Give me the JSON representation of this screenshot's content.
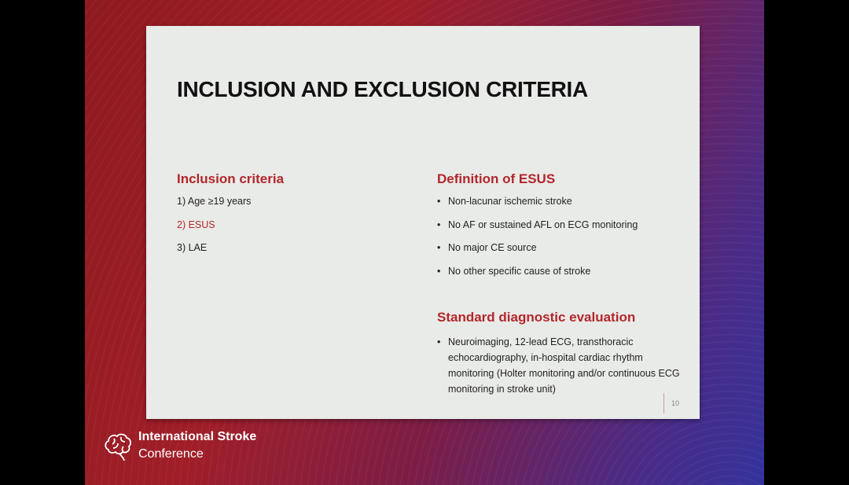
{
  "slide": {
    "title": "INCLUSION AND EXCLUSION CRITERIA",
    "inclusion": {
      "heading": "Inclusion criteria",
      "items": [
        "1) Age ≥19 years",
        "2) ESUS",
        "3) LAE"
      ]
    },
    "esus": {
      "heading": "Definition of ESUS",
      "items": [
        "Non-lacunar ischemic stroke",
        "No AF or sustained AFL on ECG monitoring",
        "No major CE source",
        "No other specific cause of stroke"
      ]
    },
    "evaluation": {
      "heading": "Standard diagnostic evaluation",
      "items": [
        "Neuroimaging, 12-lead ECG, transthoracic echocardiography, in-hospital cardiac rhythm monitoring (Holter monitoring and/or continuous ECG monitoring in stroke unit)"
      ]
    },
    "page_number": "10"
  },
  "branding": {
    "line1": "International Stroke",
    "line2": "Conference",
    "icon": "brain-icon"
  },
  "colors": {
    "accent": "#b3262b"
  }
}
